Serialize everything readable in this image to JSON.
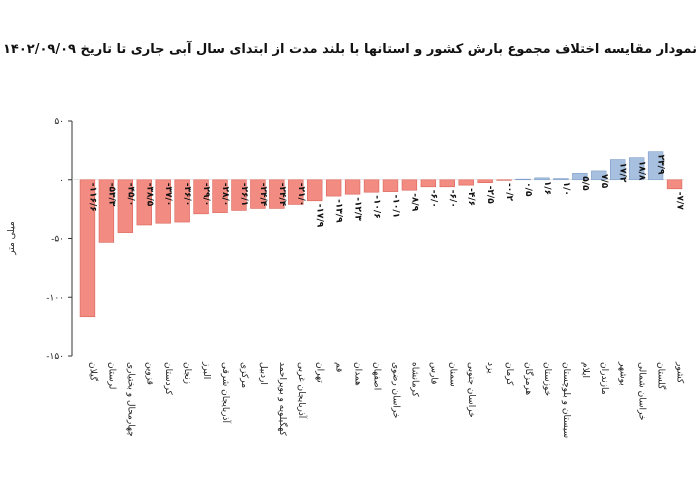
{
  "chart_data": {
    "type": "bar",
    "title": "نمودار مقایسه اختلاف مجموع بارش کشور و استانها با بلند مدت از ابتدای سال آبی جاری تا تاریخ ۱۴۰۲/۰۹/۰۹",
    "ylabel": "میلی متر",
    "xlabel": "",
    "ylim": [
      -150,
      50
    ],
    "yticks": [
      50,
      0,
      -50,
      -100,
      -150
    ],
    "ytick_labels": [
      "۵۰",
      "۰",
      "-۵۰",
      "-۱۰۰",
      "-۱۵۰"
    ],
    "grid": false,
    "categories": [
      "گیلان",
      "لرستان",
      "چهارمحال و بختیاری",
      "قزوین",
      "کردستان",
      "زنجان",
      "البرز",
      "آذربایجان شرقی",
      "مرکزی",
      "اردبیل",
      "کهگیلویه و بویراحمد",
      "آذربایجان غربی",
      "تهران",
      "قم",
      "همدان",
      "اصفهان",
      "خراسان رضوی",
      "کرمانشاه",
      "فارس",
      "سمنان",
      "خراسان جنوبی",
      "یزد",
      "کرمان",
      "هرمزگان",
      "خوزستان",
      "سیستان و بلوچستان",
      "ایلام",
      "مازندران",
      "بوشهر",
      "خراسان شمالی",
      "گلستان",
      "کشور"
    ],
    "values": [
      -116.6,
      -53.3,
      -45.0,
      -38.5,
      -37.0,
      -36.0,
      -29.0,
      -28.0,
      -26.1,
      -24.4,
      -24.4,
      -21.0,
      -17.9,
      -13.9,
      -12.3,
      -10.6,
      -10.1,
      -8.9,
      -6.0,
      -6.0,
      -4.6,
      -2.5,
      -0.2,
      0.5,
      1.6,
      1.0,
      5.5,
      7.5,
      17.2,
      18.8,
      23.9,
      -7.7
    ],
    "value_labels": [
      "-۱۱۶/۶",
      "-۵۳/۳",
      "-۴۵/۰",
      "-۳۸/۵",
      "-۳۷/۰",
      "-۳۶/۰",
      "-۲۹/۰",
      "-۲۸/۰",
      "-۲۶/۱",
      "-۲۴/۴",
      "-۲۴/۴",
      "-۲۱/۰",
      "-۱۷/۹",
      "-۱۳/۹",
      "-۱۲/۳",
      "-۱۰/۶",
      "-۱۰/۱",
      "-۸/۹",
      "-۶/۰",
      "-۶/۰",
      "-۴/۶",
      "-۲/۵",
      "-۰/۲",
      "۰/۵",
      "۱/۶",
      "۱/۰",
      "۵/۵",
      "۷/۵",
      "۱۷/۲",
      "۱۸/۸",
      "۲۳/۹",
      "-۷/۷"
    ],
    "colors": {
      "negative": "#f28b81",
      "negative_stroke": "#d9645a",
      "positive": "#a8c0e0",
      "positive_stroke": "#7f9ec9",
      "axis": "#333333"
    }
  }
}
